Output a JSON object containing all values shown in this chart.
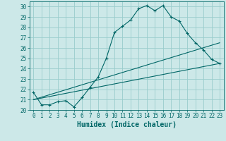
{
  "xlabel": "Humidex (Indice chaleur)",
  "bg_color": "#cce8e8",
  "grid_color": "#99cccc",
  "line_color": "#006666",
  "xlim": [
    -0.5,
    23.5
  ],
  "ylim": [
    20,
    30.5
  ],
  "yticks": [
    20,
    21,
    22,
    23,
    24,
    25,
    26,
    27,
    28,
    29,
    30
  ],
  "xticks": [
    0,
    1,
    2,
    3,
    4,
    5,
    6,
    7,
    8,
    9,
    10,
    11,
    12,
    13,
    14,
    15,
    16,
    17,
    18,
    19,
    20,
    21,
    22,
    23
  ],
  "line1_x": [
    0,
    1,
    2,
    3,
    4,
    5,
    6,
    7,
    8,
    9,
    10,
    11,
    12,
    13,
    14,
    15,
    16,
    17,
    18,
    19,
    20,
    21,
    22,
    23
  ],
  "line1_y": [
    21.7,
    20.5,
    20.5,
    20.8,
    20.9,
    20.3,
    21.2,
    22.2,
    23.2,
    25.0,
    27.5,
    28.1,
    28.7,
    29.8,
    30.1,
    29.6,
    30.1,
    29.0,
    28.6,
    27.4,
    26.5,
    25.8,
    24.9,
    24.5
  ],
  "line2_x": [
    0,
    23
  ],
  "line2_y": [
    21.0,
    24.5
  ],
  "line3_x": [
    0,
    23
  ],
  "line3_y": [
    21.0,
    26.5
  ],
  "xlabel_fontsize": 7,
  "tick_fontsize": 5.5
}
